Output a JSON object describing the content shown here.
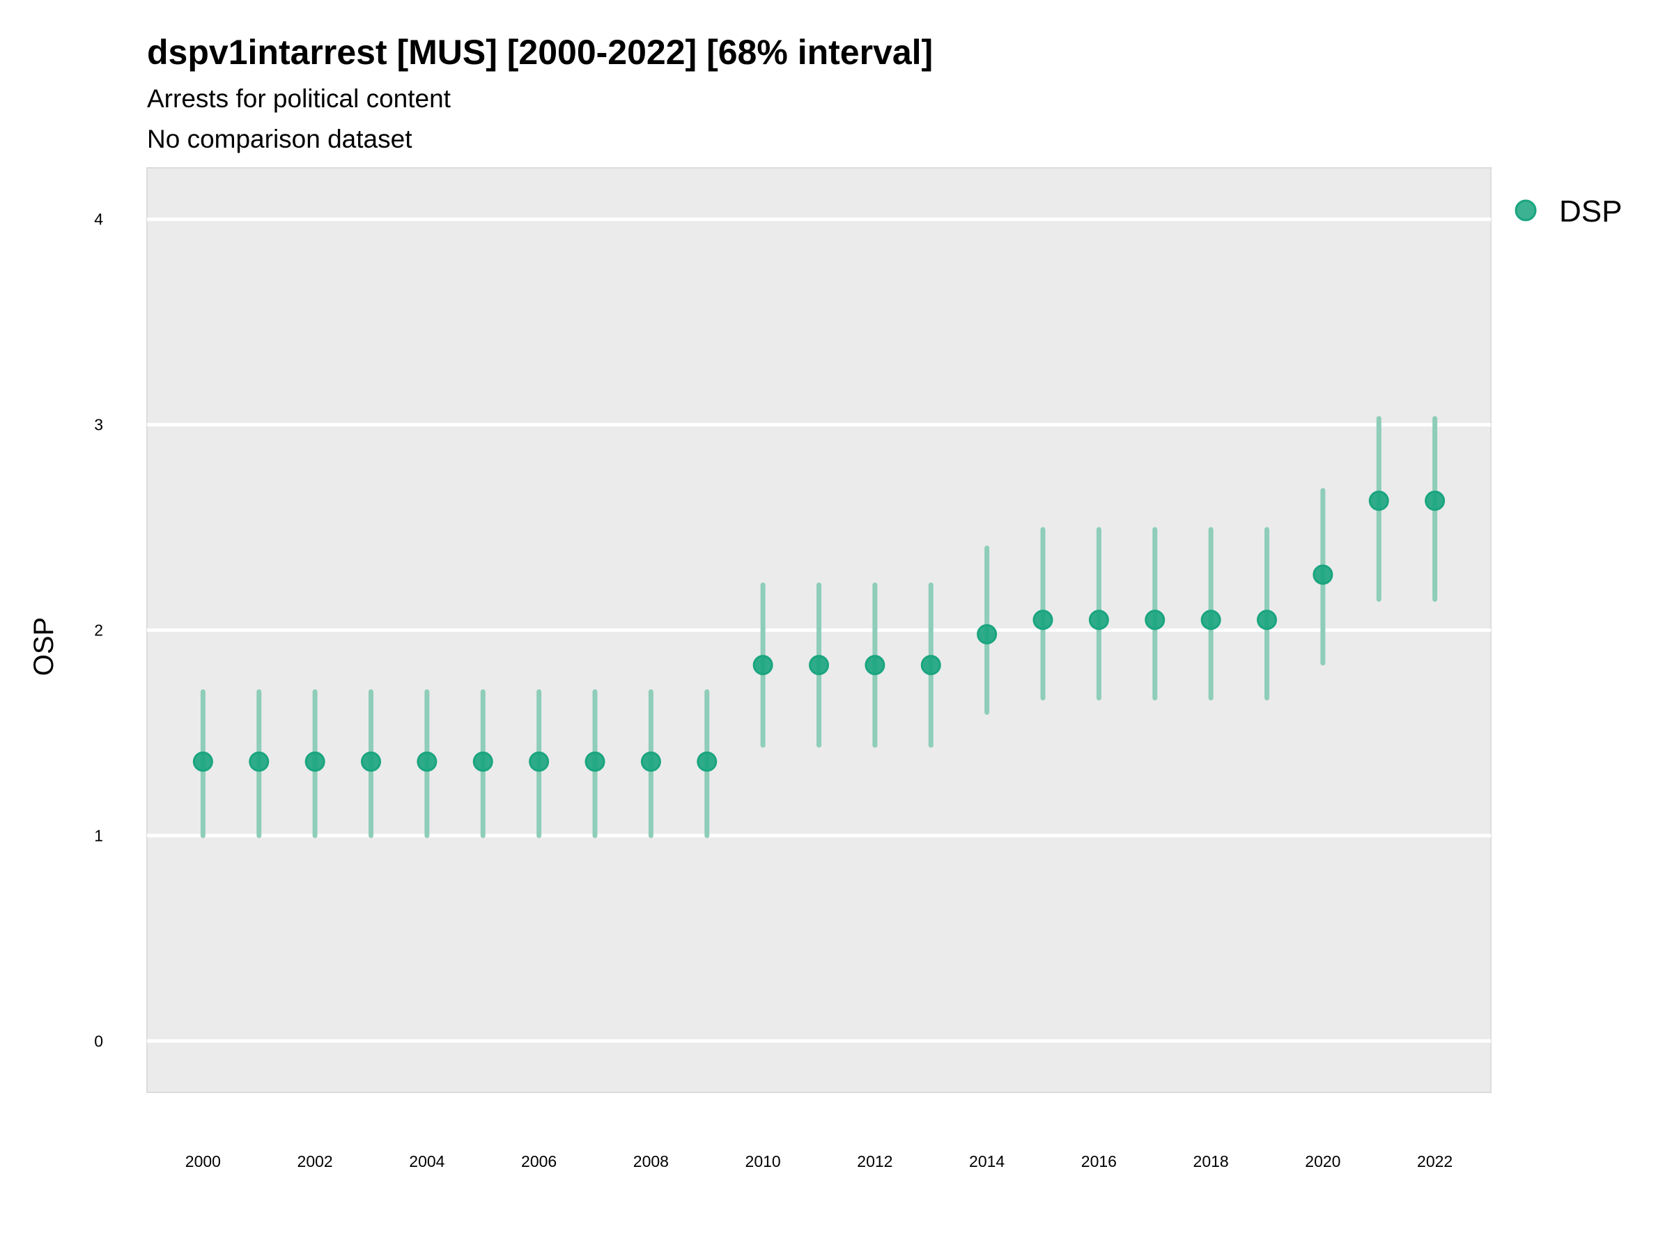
{
  "chart_data": {
    "type": "scatter",
    "title": "dspv1intarrest [MUS] [2000-2022] [68% interval]",
    "subtitle": "Arrests for political content",
    "caption_line": "No comparison dataset",
    "xlabel": "",
    "ylabel": "OSP",
    "ylim": [
      -0.25,
      4.25
    ],
    "xlim": [
      1999,
      2023
    ],
    "yticks": [
      "0",
      "1",
      "2",
      "3",
      "4"
    ],
    "xticks": [
      "2000",
      "2002",
      "2004",
      "2006",
      "2008",
      "2010",
      "2012",
      "2014",
      "2016",
      "2018",
      "2020",
      "2022"
    ],
    "grid": true,
    "legend_position": "right",
    "colors": {
      "point": "#1aa57f",
      "interval": "#8ecdb9",
      "panel": "#ebebeb"
    },
    "series": [
      {
        "name": "DSP",
        "x": [
          2000,
          2001,
          2002,
          2003,
          2004,
          2005,
          2006,
          2007,
          2008,
          2009,
          2010,
          2011,
          2012,
          2013,
          2014,
          2015,
          2016,
          2017,
          2018,
          2019,
          2020,
          2021,
          2022
        ],
        "y": [
          1.36,
          1.36,
          1.36,
          1.36,
          1.36,
          1.36,
          1.36,
          1.36,
          1.36,
          1.36,
          1.83,
          1.83,
          1.83,
          1.83,
          1.98,
          2.05,
          2.05,
          2.05,
          2.05,
          2.05,
          2.27,
          2.63,
          2.63
        ],
        "lower": [
          1.0,
          1.0,
          1.0,
          1.0,
          1.0,
          1.0,
          1.0,
          1.0,
          1.0,
          1.0,
          1.44,
          1.44,
          1.44,
          1.44,
          1.6,
          1.67,
          1.67,
          1.67,
          1.67,
          1.67,
          1.84,
          2.15,
          2.15
        ],
        "upper": [
          1.7,
          1.7,
          1.7,
          1.7,
          1.7,
          1.7,
          1.7,
          1.7,
          1.7,
          1.7,
          2.22,
          2.22,
          2.22,
          2.22,
          2.4,
          2.49,
          2.49,
          2.49,
          2.49,
          2.49,
          2.68,
          3.03,
          3.03
        ]
      }
    ]
  }
}
